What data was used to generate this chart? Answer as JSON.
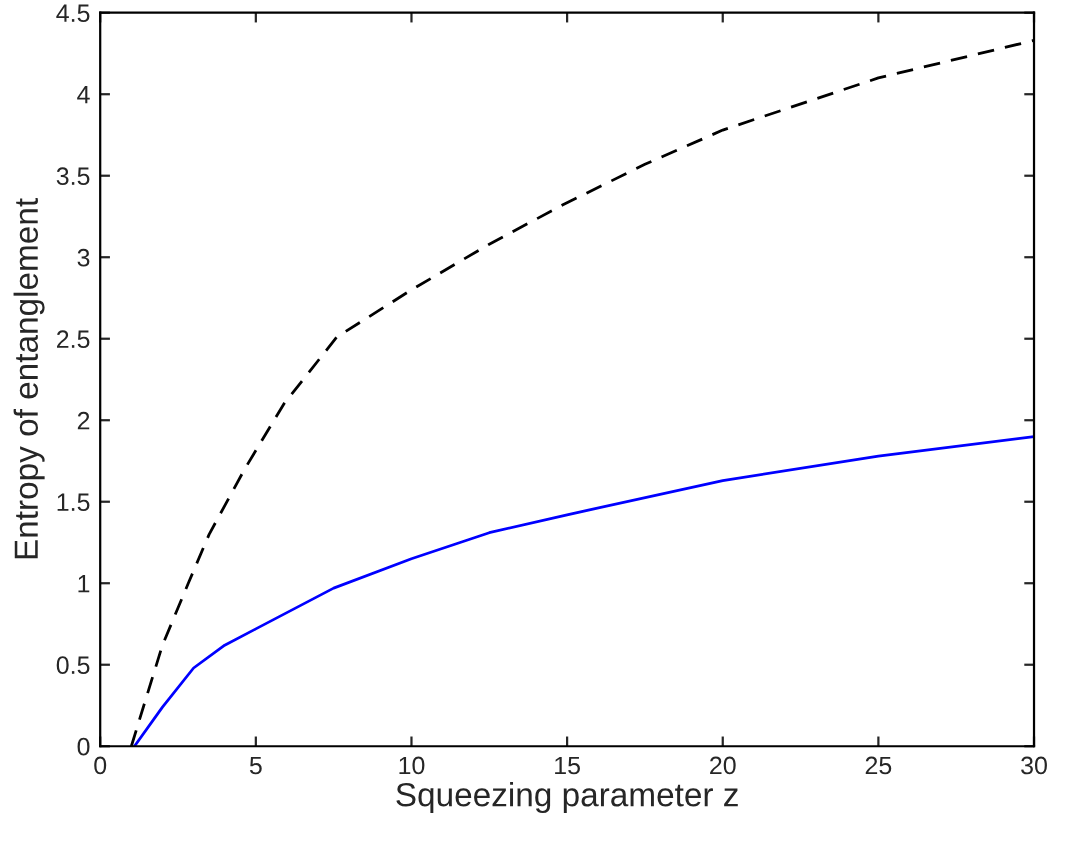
{
  "chart_data": {
    "type": "line",
    "xlabel": "Squeezing parameter z",
    "ylabel": "Entropy of entanglement",
    "xlim": [
      0,
      30
    ],
    "ylim": [
      0,
      4.5
    ],
    "xticks": [
      0,
      5,
      10,
      15,
      20,
      25,
      30
    ],
    "yticks": [
      0,
      0.5,
      1,
      1.5,
      2,
      2.5,
      3,
      3.5,
      4,
      4.5
    ],
    "grid": false,
    "legend": false,
    "series": [
      {
        "color": "#000000",
        "line_style": "dashed",
        "x": [
          1,
          1.45,
          2,
          2.83,
          3.5,
          4.64,
          5.9,
          7.6,
          10,
          12.5,
          14.85,
          17.5,
          20,
          25,
          30
        ],
        "values": [
          0,
          0.28,
          0.62,
          1.0,
          1.3,
          1.7,
          2.1,
          2.51,
          2.8,
          3.08,
          3.32,
          3.57,
          3.78,
          4.1,
          4.33
        ]
      },
      {
        "color": "#0000ff",
        "line_style": "solid",
        "x": [
          1.1,
          2,
          3,
          4,
          5,
          7.5,
          10,
          12.5,
          15,
          20,
          25,
          30
        ],
        "values": [
          0,
          0.24,
          0.48,
          0.62,
          0.72,
          0.97,
          1.15,
          1.31,
          1.42,
          1.63,
          1.78,
          1.9
        ]
      }
    ]
  }
}
